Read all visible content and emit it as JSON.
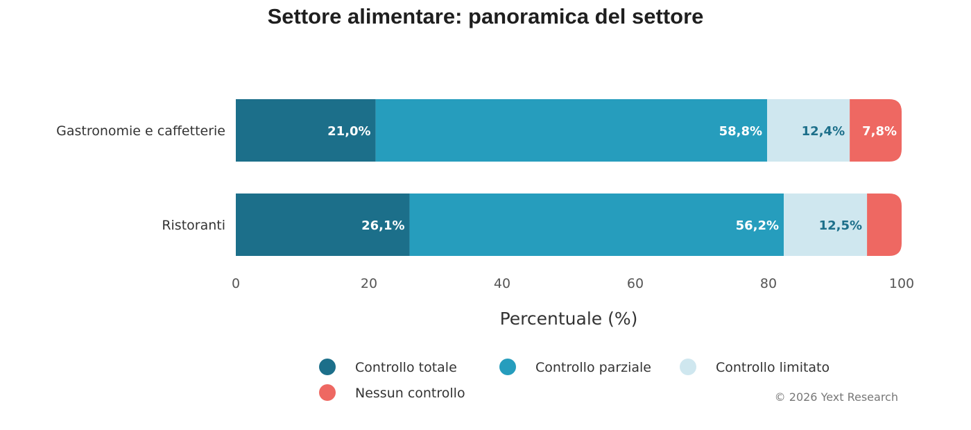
{
  "chart_data": {
    "type": "bar",
    "orientation": "horizontal",
    "stacked": true,
    "title": "Settore alimentare: panoramica del settore",
    "categories": [
      "Gastronomie e caffetterie",
      "Ristoranti"
    ],
    "series": [
      {
        "name": "Controllo totale",
        "color": "#1c6f8a",
        "values": [
          21.0,
          26.1
        ],
        "labels": [
          "21,0%",
          "26,1%"
        ],
        "label_color": "#ffffff"
      },
      {
        "name": "Controllo parziale",
        "color": "#269dbd",
        "values": [
          58.8,
          56.2
        ],
        "labels": [
          "58,8%",
          "56,2%"
        ],
        "label_color": "#ffffff"
      },
      {
        "name": "Controllo limitato",
        "color": "#cfe7ef",
        "values": [
          12.4,
          12.5
        ],
        "labels": [
          "12,4%",
          "12,5%"
        ],
        "label_color": "#1c6f8a"
      },
      {
        "name": "Nessun controllo",
        "color": "#ee6862",
        "values": [
          7.8,
          5.2
        ],
        "labels": [
          "7,8%",
          ""
        ],
        "label_color": "#ffffff"
      }
    ],
    "xlabel": "Percentuale (%)",
    "ylabel": "",
    "xlim": [
      0,
      100
    ],
    "xticks": [
      0,
      20,
      40,
      60,
      80,
      100
    ],
    "grid": false,
    "legend_position": "bottom"
  },
  "credit": "© 2026 Yext Research"
}
